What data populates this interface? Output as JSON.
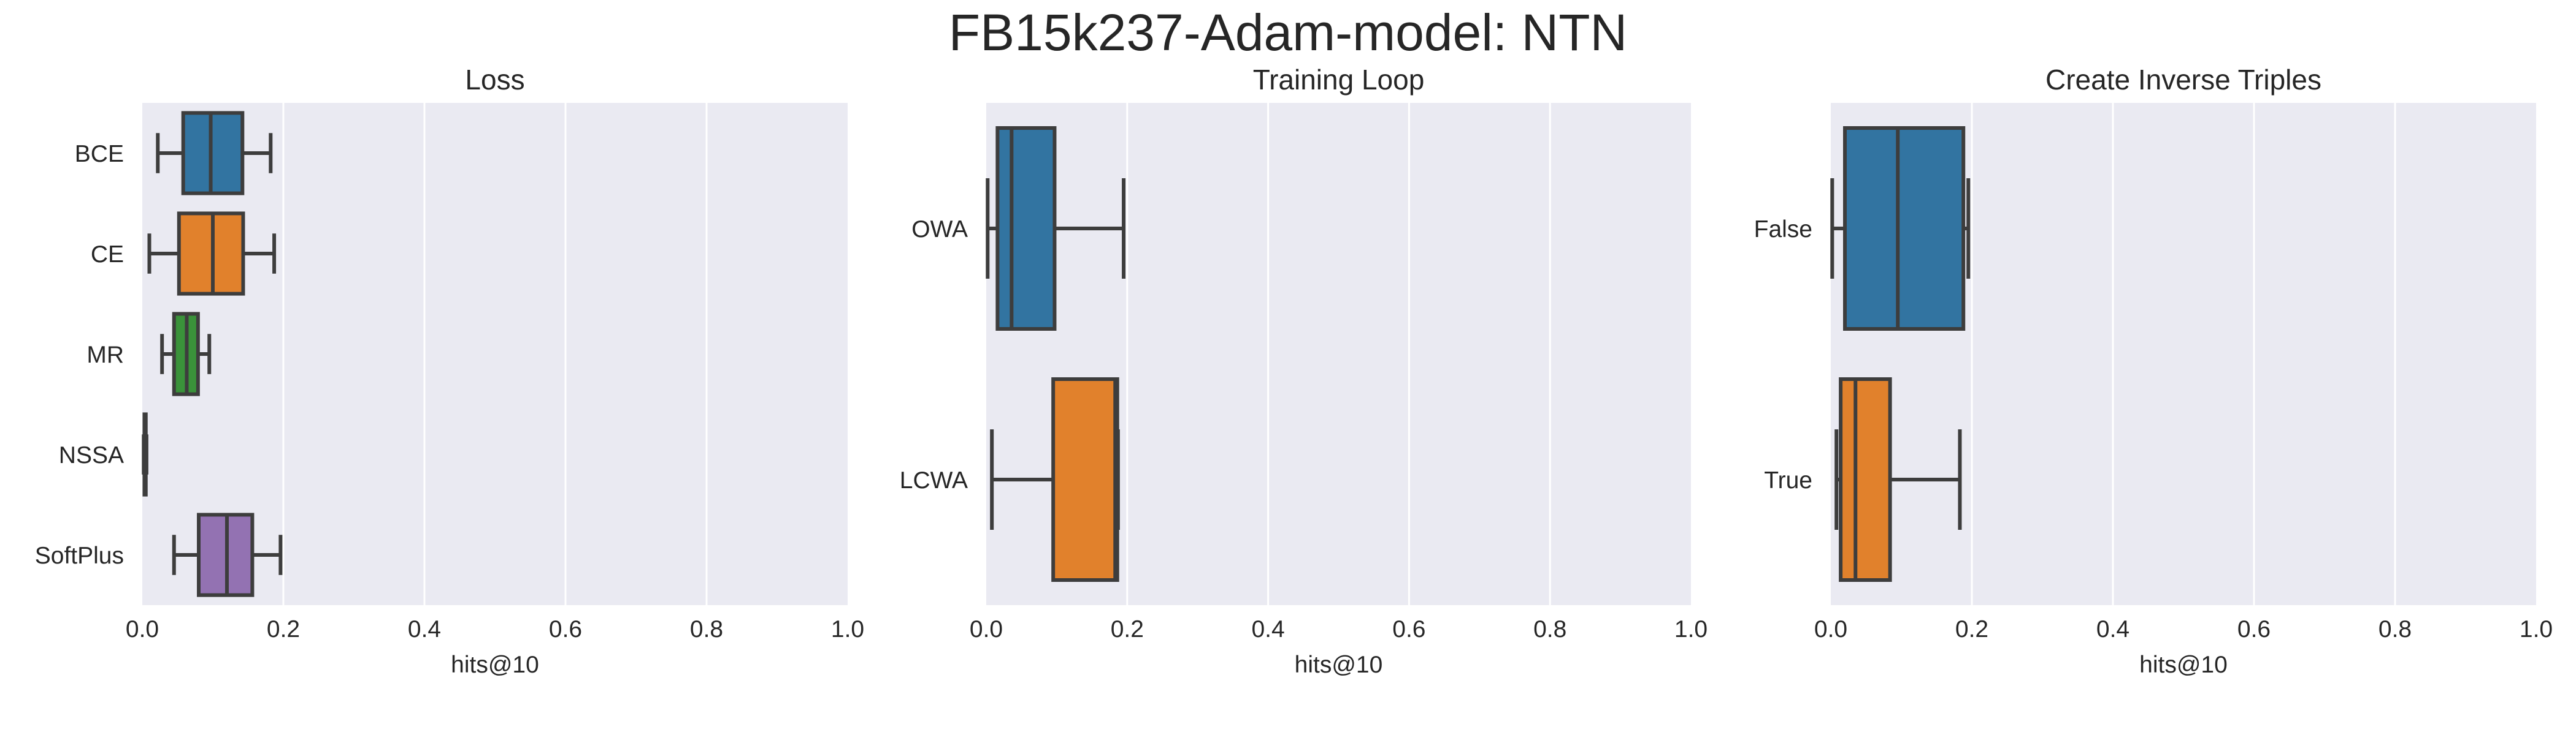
{
  "figure": {
    "title": "FB15k237-Adam-model: NTN"
  },
  "style": {
    "panel_background": "#EAEAF2",
    "grid_color": "#FFFFFF",
    "whisker_color": "#3D3D3D",
    "palette": [
      "#3274A1",
      "#E1812C",
      "#3A923A",
      "#C03D3E",
      "#9372B2"
    ]
  },
  "chart_data": [
    {
      "type": "box",
      "orientation": "horizontal",
      "title": "Loss",
      "xlabel": "hits@10",
      "ylabel": "",
      "xlim": [
        0,
        1
      ],
      "xticks": [
        "0.0",
        "0.2",
        "0.4",
        "0.6",
        "0.8",
        "1.0"
      ],
      "grid": true,
      "categories": [
        "BCE",
        "CE",
        "MR",
        "NSSA",
        "SoftPlus"
      ],
      "boxes": [
        {
          "category": "BCE",
          "whisker_low": 0.022,
          "q1": 0.058,
          "median": 0.097,
          "q3": 0.142,
          "whisker_high": 0.182,
          "color": "#3274A1"
        },
        {
          "category": "CE",
          "whisker_low": 0.01,
          "q1": 0.052,
          "median": 0.1,
          "q3": 0.143,
          "whisker_high": 0.187,
          "color": "#E1812C"
        },
        {
          "category": "MR",
          "whisker_low": 0.028,
          "q1": 0.045,
          "median": 0.063,
          "q3": 0.079,
          "whisker_high": 0.095,
          "color": "#3A923A"
        },
        {
          "category": "NSSA",
          "whisker_low": 0.002,
          "q1": 0.003,
          "median": 0.004,
          "q3": 0.005,
          "whisker_high": 0.006,
          "color": "#C03D3E"
        },
        {
          "category": "SoftPlus",
          "whisker_low": 0.045,
          "q1": 0.08,
          "median": 0.12,
          "q3": 0.156,
          "whisker_high": 0.196,
          "color": "#9372B2"
        }
      ]
    },
    {
      "type": "box",
      "orientation": "horizontal",
      "title": "Training Loop",
      "xlabel": "hits@10",
      "ylabel": "",
      "xlim": [
        0,
        1
      ],
      "xticks": [
        "0.0",
        "0.2",
        "0.4",
        "0.6",
        "0.8",
        "1.0"
      ],
      "grid": true,
      "categories": [
        "OWA",
        "LCWA"
      ],
      "boxes": [
        {
          "category": "OWA",
          "whisker_low": 0.002,
          "q1": 0.016,
          "median": 0.036,
          "q3": 0.097,
          "whisker_high": 0.195,
          "color": "#3274A1"
        },
        {
          "category": "LCWA",
          "whisker_low": 0.008,
          "q1": 0.095,
          "median": 0.183,
          "q3": 0.186,
          "whisker_high": 0.187,
          "color": "#E1812C"
        }
      ]
    },
    {
      "type": "box",
      "orientation": "horizontal",
      "title": "Create Inverse Triples",
      "xlabel": "hits@10",
      "ylabel": "",
      "xlim": [
        0,
        1
      ],
      "xticks": [
        "0.0",
        "0.2",
        "0.4",
        "0.6",
        "0.8",
        "1.0"
      ],
      "grid": true,
      "categories": [
        "False",
        "True"
      ],
      "boxes": [
        {
          "category": "False",
          "whisker_low": 0.002,
          "q1": 0.02,
          "median": 0.095,
          "q3": 0.188,
          "whisker_high": 0.195,
          "color": "#3274A1"
        },
        {
          "category": "True",
          "whisker_low": 0.008,
          "q1": 0.014,
          "median": 0.035,
          "q3": 0.084,
          "whisker_high": 0.183,
          "color": "#E1812C"
        }
      ]
    }
  ]
}
